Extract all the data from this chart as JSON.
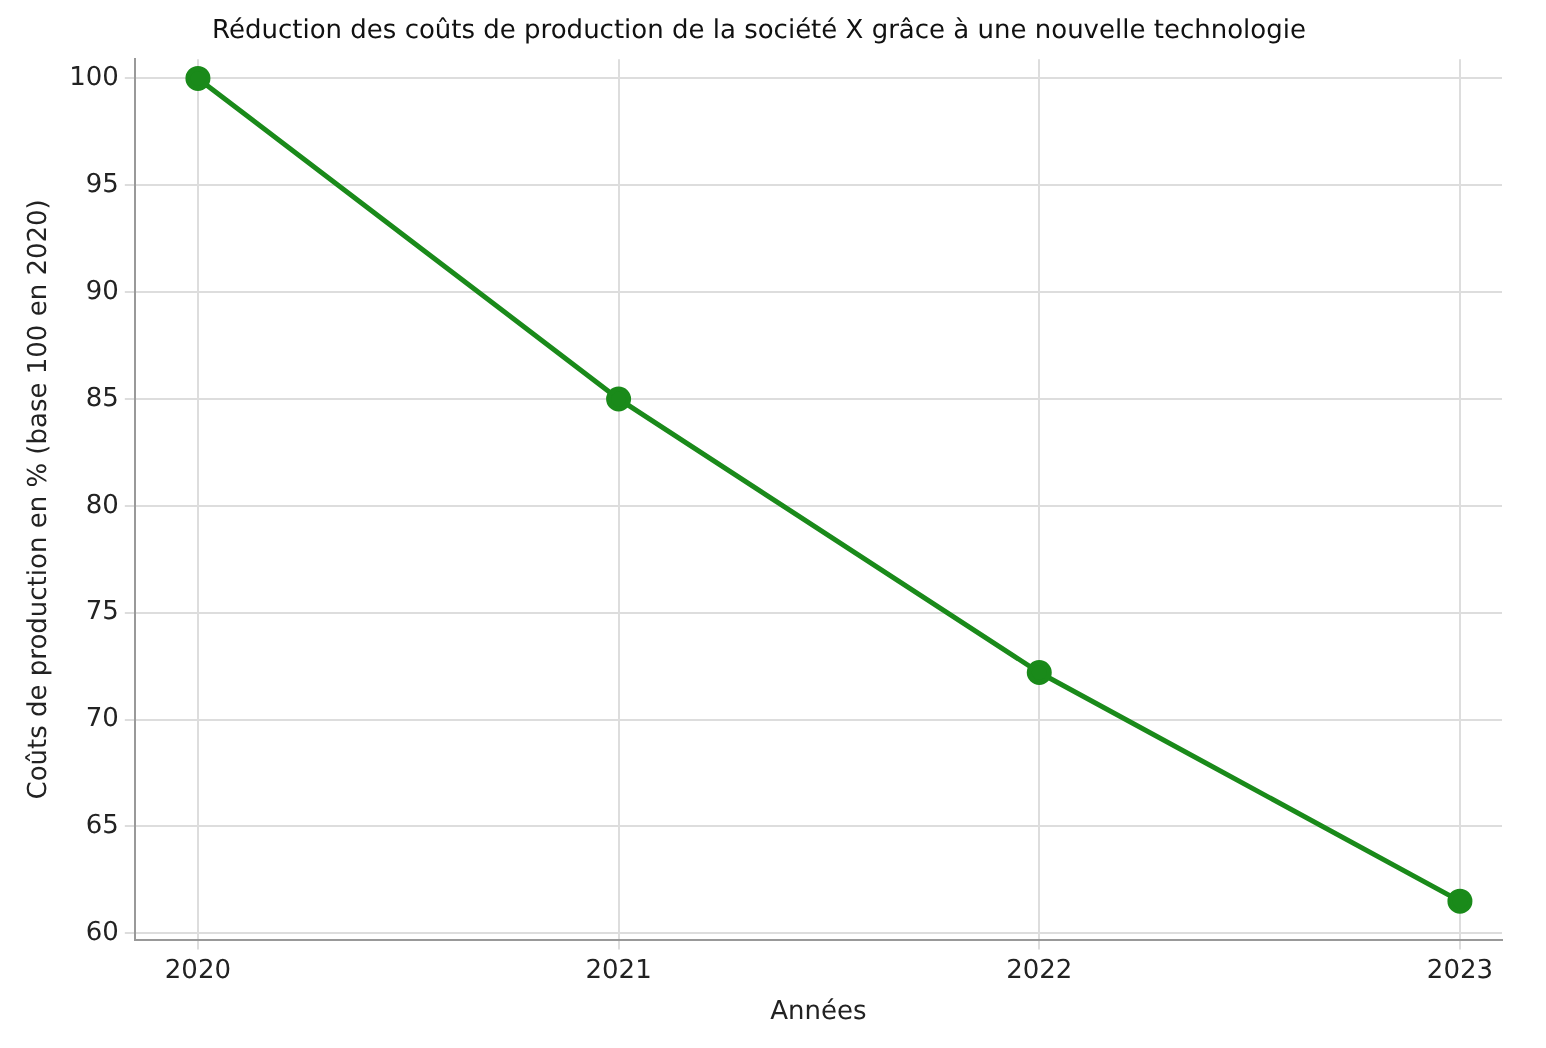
{
  "chart_data": {
    "type": "line",
    "title": "Réduction des coûts de production de la société X grâce à une nouvelle technologie",
    "xlabel": "Années",
    "ylabel": "Coûts de production en % (base 100 en 2020)",
    "x": [
      2020,
      2021,
      2022,
      2023
    ],
    "series": [
      {
        "color": "#1a8a1a",
        "values": [
          100,
          85,
          72.2,
          61.5
        ]
      }
    ],
    "xlim": [
      2019.85,
      2023.1
    ],
    "xticks": [
      2020,
      2021,
      2022,
      2023
    ],
    "ylim": [
      59.7,
      100.9
    ],
    "yticks": [
      60,
      65,
      70,
      75,
      80,
      85,
      90,
      95,
      100
    ],
    "grid": true,
    "marker": "circle",
    "line_style": "solid",
    "legend": false
  }
}
